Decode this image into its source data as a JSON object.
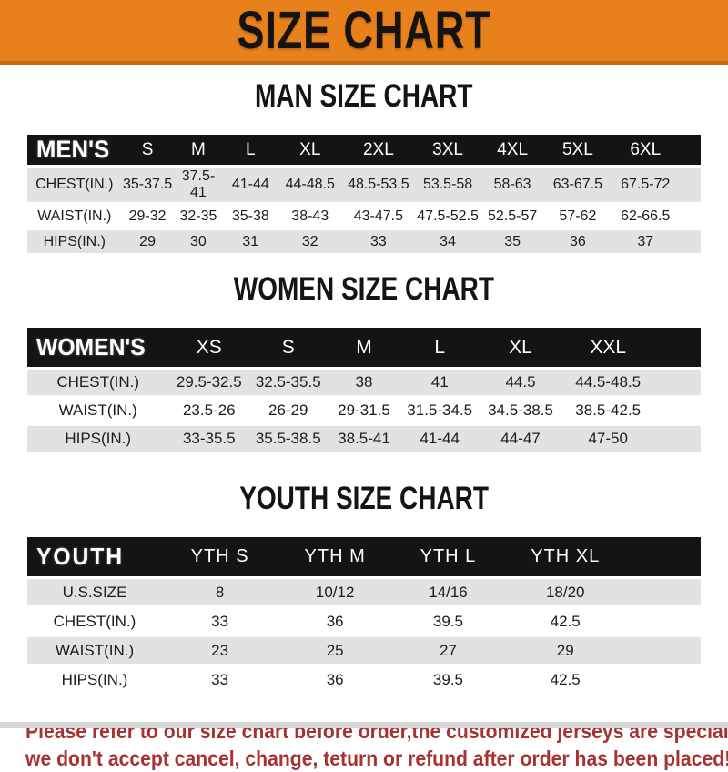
{
  "banner": {
    "title": "SIZE CHART"
  },
  "colors": {
    "banner_bg": "#E8811C",
    "banner_edge": "#C2690F",
    "header_bg": "#141414",
    "row_stripe": "#E2E2E2",
    "footer_text": "#A63232"
  },
  "sections": [
    {
      "id": "men",
      "title": "MAN SIZE CHART",
      "corner_label": "MEN'S",
      "columns": [
        "S",
        "M",
        "L",
        "XL",
        "2XL",
        "3XL",
        "4XL",
        "5XL",
        "6XL"
      ],
      "rows": [
        {
          "label": "CHEST(IN.)",
          "values": [
            "35-37.5",
            "37.5-41",
            "41-44",
            "44-48.5",
            "48.5-53.5",
            "53.5-58",
            "58-63",
            "63-67.5",
            "67.5-72"
          ]
        },
        {
          "label": "WAIST(IN.)",
          "values": [
            "29-32",
            "32-35",
            "35-38",
            "38-43",
            "43-47.5",
            "47.5-52.5",
            "52.5-57",
            "57-62",
            "62-66.5"
          ]
        },
        {
          "label": "HIPS(IN.)",
          "values": [
            "29",
            "30",
            "31",
            "32",
            "33",
            "34",
            "35",
            "36",
            "37"
          ]
        }
      ],
      "col_widths": [
        "14%",
        "7.7%",
        "7.4%",
        "8.1%",
        "9.6%",
        "10.7%",
        "9.9%",
        "9.3%",
        "10.1%",
        "10%",
        "3.2%"
      ]
    },
    {
      "id": "women",
      "title": "WOMEN SIZE CHART",
      "corner_label": "WOMEN'S",
      "columns": [
        "XS",
        "S",
        "M",
        "L",
        "XL",
        "XXL"
      ],
      "rows": [
        {
          "label": "CHEST(IN.)",
          "values": [
            "29.5-32.5",
            "32.5-35.5",
            "38",
            "41",
            "44.5",
            "44.5-48.5"
          ]
        },
        {
          "label": "WAIST(IN.)",
          "values": [
            "23.5-26",
            "26-29",
            "29-31.5",
            "31.5-34.5",
            "34.5-38.5",
            "38.5-42.5"
          ]
        },
        {
          "label": "HIPS(IN.)",
          "values": [
            "33-35.5",
            "35.5-38.5",
            "38.5-41",
            "41-44",
            "44-47",
            "47-50"
          ]
        }
      ],
      "col_widths": [
        "21%",
        "12%",
        "11.5%",
        "11%",
        "11.5%",
        "12.5%",
        "13.5%",
        "7%"
      ]
    },
    {
      "id": "youth",
      "title": "YOUTH SIZE CHART",
      "corner_label": "YOUTH",
      "columns": [
        "YTH S",
        "YTH M",
        "YTH L",
        "YTH XL"
      ],
      "rows": [
        {
          "label": "U.S.SIZE",
          "values": [
            "8",
            "10/12",
            "14/16",
            "18/20"
          ]
        },
        {
          "label": "CHEST(IN.)",
          "values": [
            "33",
            "36",
            "39.5",
            "42.5"
          ]
        },
        {
          "label": "WAIST(IN.)",
          "values": [
            "23",
            "25",
            "27",
            "29"
          ]
        },
        {
          "label": "HIPS(IN.)",
          "values": [
            "33",
            "36",
            "39.5",
            "42.5"
          ]
        }
      ],
      "col_widths": [
        "20%",
        "17.2%",
        "17%",
        "16.6%",
        "18.2%",
        "11%"
      ]
    }
  ],
  "footer": {
    "line1": "Please refer to our size chart before order,the customized jerseys are special products,",
    "line2": "we don't accept cancel, change, teturn or refund after order has been placed!"
  }
}
